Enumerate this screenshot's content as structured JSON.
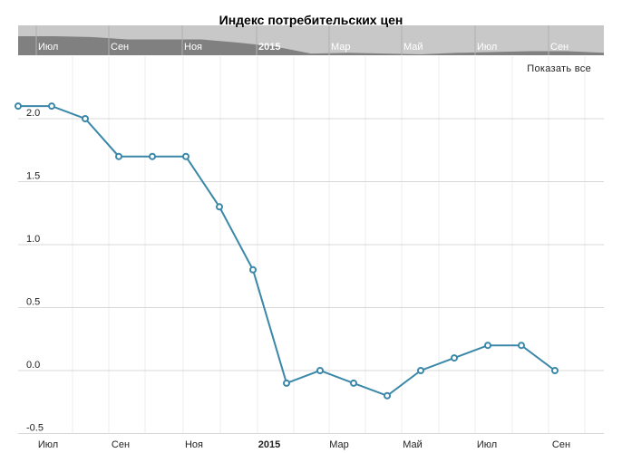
{
  "chart_data": {
    "type": "line",
    "title": "Индекс потребительских цен",
    "x_labels": [
      "Июл",
      "Сен",
      "Ноя",
      "2015",
      "Мар",
      "Май",
      "Июл",
      "Сен"
    ],
    "x_labels_bold": [
      "2015"
    ],
    "y_ticks": [
      "-0.5",
      "0.0",
      "0.5",
      "1.0",
      "1.5",
      "2.0"
    ],
    "ylim": [
      -0.55,
      2.3
    ],
    "grid": true,
    "series": [
      {
        "color": "#3a87a8",
        "x": [
          "2014-06",
          "2014-07",
          "2014-08",
          "2014-09",
          "2014-10",
          "2014-11",
          "2014-12",
          "2015-01",
          "2015-02",
          "2015-03",
          "2015-04",
          "2015-05",
          "2015-06",
          "2015-07",
          "2015-08",
          "2015-09",
          "2015-10"
        ],
        "values": [
          2.1,
          2.1,
          2.0,
          1.7,
          1.7,
          1.7,
          1.3,
          0.8,
          -0.1,
          0.0,
          -0.1,
          -0.2,
          0.0,
          0.1,
          0.2,
          0.2,
          0.0
        ]
      }
    ]
  },
  "controls": {
    "show_all": "Показать все"
  },
  "navigator": {
    "labels": [
      "Июл",
      "Сен",
      "Ноя",
      "2015",
      "Мар",
      "Май",
      "Июл",
      "Сен"
    ]
  }
}
